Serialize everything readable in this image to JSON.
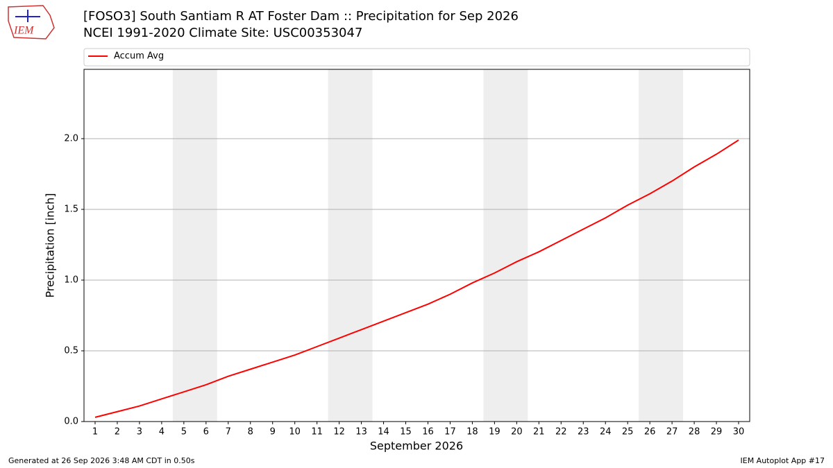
{
  "logo": {
    "text": "IEM"
  },
  "chart_data": {
    "type": "line",
    "title": "[FOSO3] South Santiam R  AT Foster Dam :: Precipitation for Sep 2026",
    "subtitle": "NCEI 1991-2020 Climate Site: USC00353047",
    "x_label": "September 2026",
    "y_label": "Precipitation [inch]",
    "x": [
      1,
      2,
      3,
      4,
      5,
      6,
      7,
      8,
      9,
      10,
      11,
      12,
      13,
      14,
      15,
      16,
      17,
      18,
      19,
      20,
      21,
      22,
      23,
      24,
      25,
      26,
      27,
      28,
      29,
      30
    ],
    "series": [
      {
        "name": "Accum Avg",
        "color": "#ff0000",
        "values": [
          0.03,
          0.07,
          0.11,
          0.16,
          0.21,
          0.26,
          0.32,
          0.37,
          0.42,
          0.47,
          0.53,
          0.59,
          0.65,
          0.71,
          0.77,
          0.83,
          0.9,
          0.98,
          1.05,
          1.13,
          1.2,
          1.28,
          1.36,
          1.44,
          1.53,
          1.61,
          1.7,
          1.8,
          1.89,
          1.99
        ]
      }
    ],
    "weekend_spans": [
      [
        4.5,
        6.5
      ],
      [
        11.5,
        13.5
      ],
      [
        18.5,
        20.5
      ],
      [
        25.5,
        27.5
      ]
    ],
    "weekend_color": "#eeeeee",
    "xlim": [
      0.5,
      30.5
    ],
    "xticks": [
      1,
      2,
      3,
      4,
      5,
      6,
      7,
      8,
      9,
      10,
      11,
      12,
      13,
      14,
      15,
      16,
      17,
      18,
      19,
      20,
      21,
      22,
      23,
      24,
      25,
      26,
      27,
      28,
      29,
      30
    ],
    "ylim": [
      0,
      2.49
    ],
    "yticks": [
      {
        "value": 0,
        "label": "0.0"
      },
      0.5,
      {
        "value": 1,
        "label": "1.0"
      },
      1.5,
      {
        "value": 2,
        "label": "2.0"
      }
    ],
    "grid": true,
    "legend_position": "top",
    "footer_left": "Generated at 26 Sep 2026 3:48 AM CDT in 0.50s",
    "footer_right": "IEM Autoplot App #17"
  }
}
